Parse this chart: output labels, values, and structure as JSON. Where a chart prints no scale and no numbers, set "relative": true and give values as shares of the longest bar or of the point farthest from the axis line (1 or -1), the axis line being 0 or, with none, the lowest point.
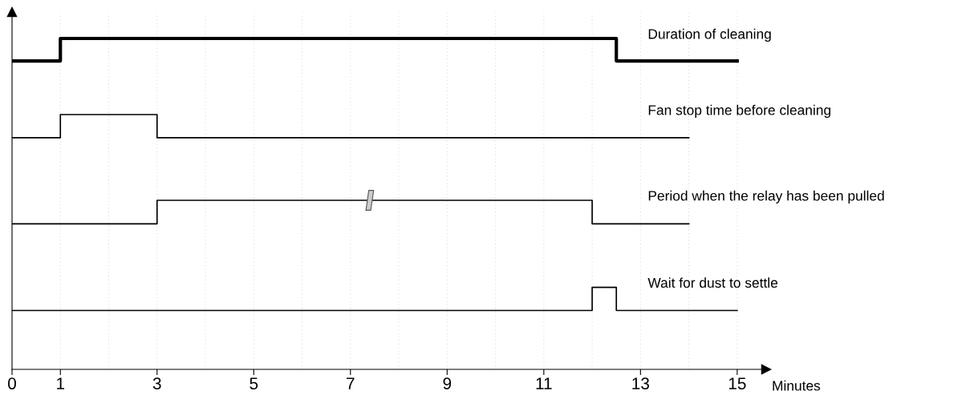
{
  "chart_data": {
    "type": "step",
    "relative": true,
    "xlabel": "Minutes",
    "xlim": [
      0,
      15.6
    ],
    "xticks": [
      0,
      1,
      3,
      5,
      7,
      9,
      11,
      13,
      15
    ],
    "tick_labels": "x",
    "grid": "x",
    "series": [
      {
        "name": "Duration of cleaning",
        "color": "#000000",
        "x": [
          0,
          1,
          12.5,
          15
        ],
        "values": [
          0.932,
          1.0,
          0.932,
          0.932
        ]
      },
      {
        "name": "Fan stop time before cleaning",
        "color": "#000000",
        "x": [
          0,
          1,
          3,
          14
        ],
        "values": [
          0.7,
          0.77,
          0.7,
          0.7
        ]
      },
      {
        "name": "Period when the relay has been pulled",
        "color": "#000000",
        "x": [
          0,
          3,
          12,
          14
        ],
        "values": [
          0.44,
          0.511,
          0.44,
          0.44
        ]
      },
      {
        "name": "Wait for dust to settle",
        "color": "#000000",
        "x": [
          0,
          12,
          12.5,
          15
        ],
        "values": [
          0.178,
          0.248,
          0.178,
          0.178
        ]
      }
    ]
  }
}
